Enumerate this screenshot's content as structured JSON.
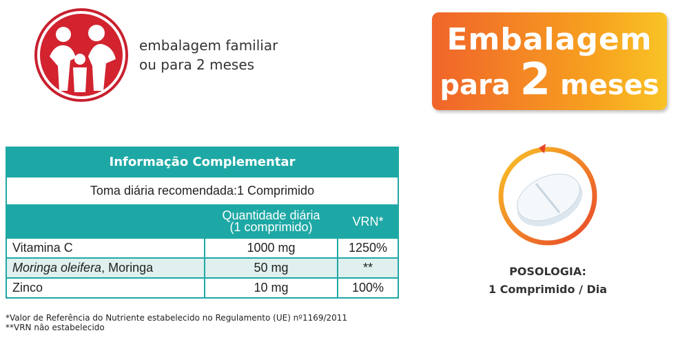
{
  "family_badge": {
    "line1": "embalagem familiar",
    "line2": "ou para 2 meses"
  },
  "promo_badge": {
    "line1": "Embalagem",
    "line2_a": "para",
    "line2_b": "2",
    "line2_c": "meses"
  },
  "table": {
    "title": "Informação Complementar",
    "subtitle": "Toma diária recomendada:1 Comprimido",
    "header": {
      "quantity_line1": "Quantidade diária",
      "quantity_line2": "(1 comprimido)",
      "vrn": "VRN*"
    },
    "rows": [
      {
        "name": "Vitamina C",
        "quantity": "1000 mg",
        "vrn": "1250%"
      },
      {
        "name_italic": "Moringa oleifera",
        "name": ", Moringa",
        "quantity": "50 mg",
        "vrn": "**"
      },
      {
        "name": "Zinco",
        "quantity": "10 mg",
        "vrn": "100%"
      }
    ]
  },
  "footnotes": [
    "*Valor de Referência do Nutriente estabelecido no Regulamento (UE) nº1169/2011",
    "**VRN não estabelecido"
  ],
  "dosage": {
    "label": "POSOLOGIA:",
    "value": "1 Comprimido / Dia"
  }
}
